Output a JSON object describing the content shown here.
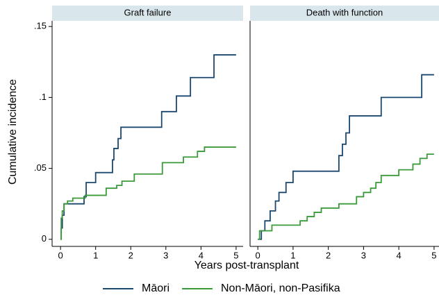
{
  "chart_data": [
    {
      "type": "line",
      "step": "post",
      "title": "Graft failure",
      "ylabel": "Cumulative incidence",
      "xlabel": "Years post-transplant",
      "xlim": [
        -0.24,
        5.2
      ],
      "xticks": [
        0,
        1,
        2,
        3,
        4,
        5
      ],
      "ylim": [
        -0.005,
        0.154
      ],
      "yticks": [
        0,
        {
          "value": 0.05,
          "label": ".05"
        },
        {
          "value": 0.1,
          "label": ".1"
        },
        {
          "value": 0.15,
          "label": ".15"
        }
      ],
      "series": [
        {
          "name": "Māori",
          "color": "#1a476f",
          "x": [
            0,
            0.02,
            0.05,
            0.1,
            0.67,
            0.73,
            1.0,
            1.48,
            1.52,
            1.64,
            1.72,
            2.88,
            3.3,
            3.7,
            4.37,
            5.0
          ],
          "values": [
            0,
            0.008,
            0.017,
            0.025,
            0.03,
            0.04,
            0.047,
            0.056,
            0.064,
            0.071,
            0.079,
            0.09,
            0.101,
            0.114,
            0.13,
            0.13
          ]
        },
        {
          "name": "Non-Māori, non-Pasifika",
          "color": "#3a9a3a",
          "x": [
            0,
            0.02,
            0.05,
            0.1,
            0.2,
            0.35,
            0.7,
            1.3,
            1.6,
            1.75,
            2.1,
            2.9,
            3.5,
            3.9,
            4.1,
            5.0
          ],
          "values": [
            0,
            0.015,
            0.02,
            0.025,
            0.027,
            0.029,
            0.031,
            0.036,
            0.038,
            0.041,
            0.046,
            0.054,
            0.058,
            0.062,
            0.065,
            0.065
          ]
        }
      ]
    },
    {
      "type": "line",
      "step": "post",
      "title": "Death with function",
      "xlim": [
        -0.22,
        5.14
      ],
      "xticks": [
        0,
        1,
        2,
        3,
        4,
        5
      ],
      "ylim": [
        -0.005,
        0.154
      ],
      "series": [
        {
          "color": "#1a476f",
          "x": [
            0,
            0.1,
            0.2,
            0.35,
            0.5,
            0.6,
            0.8,
            1.0,
            2.3,
            2.4,
            2.5,
            2.6,
            3.5,
            4.65,
            5.0
          ],
          "values": [
            0,
            0.006,
            0.013,
            0.02,
            0.027,
            0.033,
            0.04,
            0.048,
            0.059,
            0.067,
            0.075,
            0.087,
            0.1,
            0.116,
            0.116
          ]
        },
        {
          "color": "#3a9a3a",
          "x": [
            0,
            0.05,
            0.4,
            1.2,
            1.4,
            1.6,
            1.8,
            2.3,
            2.8,
            3.0,
            3.2,
            3.35,
            3.5,
            4.0,
            4.4,
            4.6,
            4.8,
            5.0
          ],
          "values": [
            0,
            0.006,
            0.01,
            0.013,
            0.016,
            0.019,
            0.022,
            0.025,
            0.03,
            0.033,
            0.036,
            0.04,
            0.045,
            0.049,
            0.053,
            0.057,
            0.06,
            0.06
          ]
        }
      ]
    }
  ]
}
